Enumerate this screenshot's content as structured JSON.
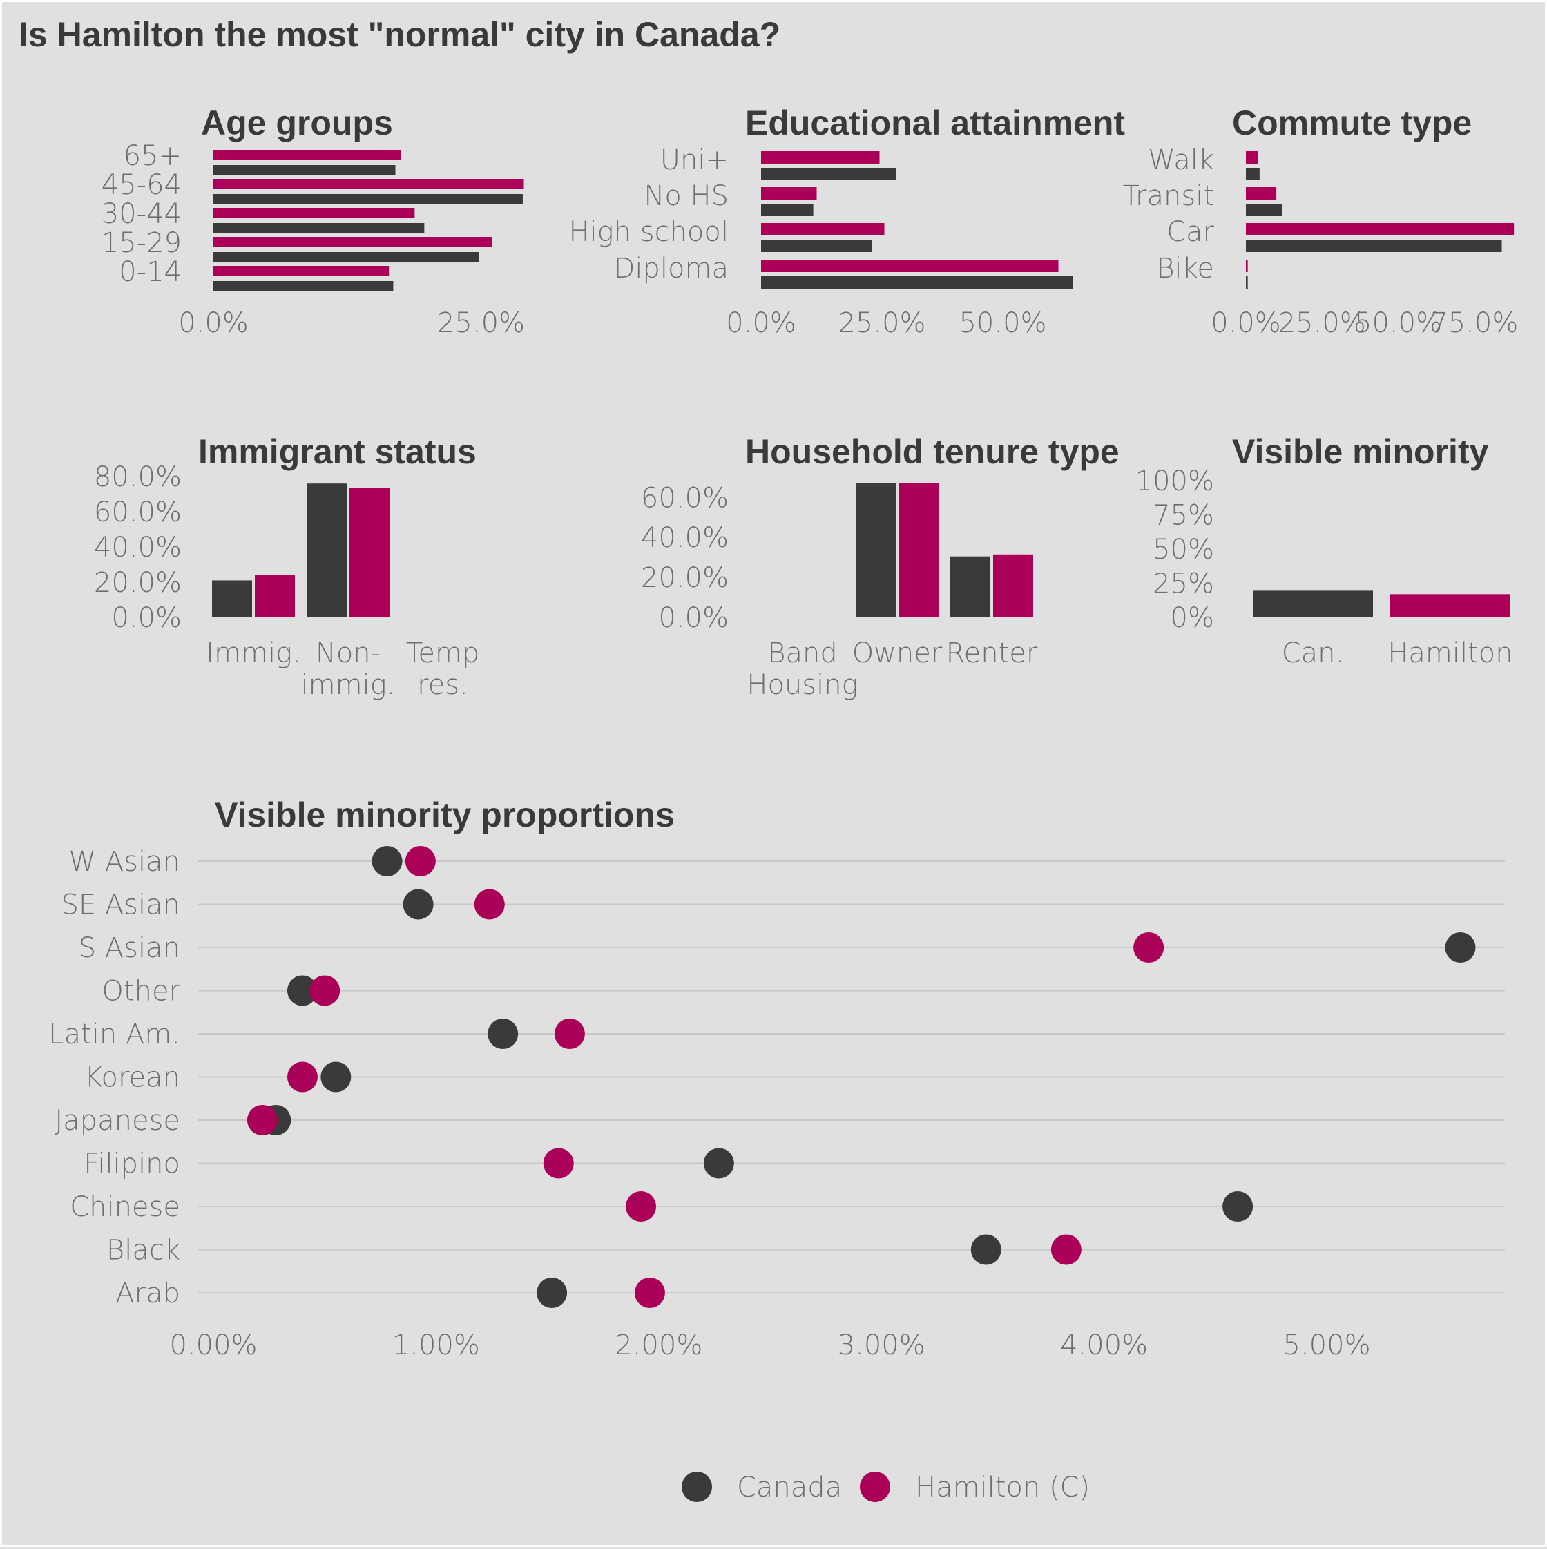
{
  "page_title": "Is Hamilton the most \"normal\" city in Canada?",
  "colors": {
    "canada": "#3a3a3a",
    "hamilton": "#ab0058",
    "background": "#e0e0e0",
    "grid": "#c8c8c8",
    "text": "#3a3a3a",
    "tick": "#6e6e6e"
  },
  "legend": [
    {
      "name": "Canada",
      "color": "#3a3a3a"
    },
    {
      "name": "Hamilton (C)",
      "color": "#ab0058"
    }
  ],
  "chart_data": [
    {
      "id": "age",
      "type": "bar",
      "orientation": "horizontal",
      "title": "Age groups",
      "categories": [
        "65+",
        "45-64",
        "30-44",
        "15-29",
        "0-14"
      ],
      "series": [
        {
          "name": "Hamilton (C)",
          "values": [
            17.5,
            29.0,
            18.8,
            26.0,
            16.4
          ]
        },
        {
          "name": "Canada",
          "values": [
            17.0,
            28.9,
            19.7,
            24.8,
            16.8
          ]
        }
      ],
      "xlim": [
        0,
        30
      ],
      "xticks": [
        {
          "value": 0,
          "label": "0.0%"
        },
        {
          "value": 25,
          "label": "25.0%"
        }
      ]
    },
    {
      "id": "education",
      "type": "bar",
      "orientation": "horizontal",
      "title": "Educational attainment",
      "categories": [
        "Uni+",
        "No HS",
        "High school",
        "Diploma"
      ],
      "series": [
        {
          "name": "Hamilton (C)",
          "values": [
            24.5,
            11.5,
            25.5,
            61.5
          ]
        },
        {
          "name": "Canada",
          "values": [
            28.0,
            10.8,
            23.0,
            64.5
          ]
        }
      ],
      "xlim": [
        0,
        70
      ],
      "xticks": [
        {
          "value": 0,
          "label": "0.0%"
        },
        {
          "value": 25,
          "label": "25.0%"
        },
        {
          "value": 50,
          "label": "50.0%"
        }
      ]
    },
    {
      "id": "commute",
      "type": "bar",
      "orientation": "horizontal",
      "title": "Commute type",
      "categories": [
        "Walk",
        "Transit",
        "Car",
        "Bike"
      ],
      "series": [
        {
          "name": "Hamilton (C)",
          "values": [
            4.0,
            10.0,
            88.0,
            0.6
          ]
        },
        {
          "name": "Canada",
          "values": [
            4.5,
            12.0,
            84.0,
            0.6
          ]
        }
      ],
      "xlim": [
        0,
        90
      ],
      "xticks": [
        {
          "value": 0,
          "label": "0.0%"
        },
        {
          "value": 25,
          "label": "25.0%"
        },
        {
          "value": 50,
          "label": "50.0%"
        },
        {
          "value": 75,
          "label": "75.0%"
        }
      ]
    },
    {
      "id": "immigrant",
      "type": "bar",
      "orientation": "vertical",
      "title": "Immigrant status",
      "categories": [
        [
          "Immig."
        ],
        [
          "Non-",
          "immig."
        ],
        [
          "Temp",
          "res."
        ]
      ],
      "series": [
        {
          "name": "Canada",
          "values": [
            21.0,
            76.0,
            0
          ]
        },
        {
          "name": "Hamilton (C)",
          "values": [
            24.0,
            73.5,
            0
          ]
        }
      ],
      "ylim": [
        0,
        80
      ],
      "yticks": [
        {
          "value": 0,
          "label": "0.0%"
        },
        {
          "value": 20,
          "label": "20.0%"
        },
        {
          "value": 40,
          "label": "40.0%"
        },
        {
          "value": 60,
          "label": "60.0%"
        },
        {
          "value": 80,
          "label": "80.0%"
        }
      ]
    },
    {
      "id": "tenure",
      "type": "bar",
      "orientation": "vertical",
      "title": "Household tenure type",
      "categories": [
        [
          "Band",
          "Housing"
        ],
        [
          "Owner"
        ],
        [
          "Renter"
        ]
      ],
      "series": [
        {
          "name": "Canada",
          "values": [
            0,
            67.0,
            30.5
          ]
        },
        {
          "name": "Hamilton (C)",
          "values": [
            0,
            67.0,
            31.5
          ]
        }
      ],
      "ylim": [
        0,
        67
      ],
      "yticks": [
        {
          "value": 0,
          "label": "0.0%"
        },
        {
          "value": 20,
          "label": "20.0%"
        },
        {
          "value": 40,
          "label": "40.0%"
        },
        {
          "value": 60,
          "label": "60.0%"
        }
      ]
    },
    {
      "id": "visible_minority",
      "type": "bar",
      "orientation": "vertical",
      "title": "Visible minority",
      "categories": [
        [
          "Can."
        ],
        [
          "Hamilton"
        ]
      ],
      "values": [
        19.5,
        17.0
      ],
      "value_series": [
        "Canada",
        "Hamilton (C)"
      ],
      "ylim": [
        0,
        100
      ],
      "yticks": [
        {
          "value": 0,
          "label": "0%"
        },
        {
          "value": 25,
          "label": "25%"
        },
        {
          "value": 50,
          "label": "50%"
        },
        {
          "value": 75,
          "label": "75%"
        },
        {
          "value": 100,
          "label": "100%"
        }
      ]
    },
    {
      "id": "vm_proportions",
      "type": "scatter",
      "title": "Visible minority proportions",
      "categories": [
        "W Asian",
        "SE Asian",
        "S Asian",
        "Other",
        "Latin Am.",
        "Korean",
        "Japanese",
        "Filipino",
        "Chinese",
        "Black",
        "Arab"
      ],
      "series": [
        {
          "name": "Canada",
          "values": [
            0.78,
            0.92,
            5.6,
            0.4,
            1.3,
            0.55,
            0.28,
            2.27,
            4.6,
            3.47,
            1.52
          ]
        },
        {
          "name": "Hamilton (C)",
          "values": [
            0.93,
            1.24,
            4.2,
            0.5,
            1.6,
            0.4,
            0.22,
            1.55,
            1.92,
            3.83,
            1.96
          ]
        }
      ],
      "xlim": [
        0,
        5.8
      ],
      "xticks": [
        {
          "value": 0,
          "label": "0.00%"
        },
        {
          "value": 1,
          "label": "1.00%"
        },
        {
          "value": 2,
          "label": "2.00%"
        },
        {
          "value": 3,
          "label": "3.00%"
        },
        {
          "value": 4,
          "label": "4.00%"
        },
        {
          "value": 5,
          "label": "5.00%"
        }
      ]
    }
  ]
}
